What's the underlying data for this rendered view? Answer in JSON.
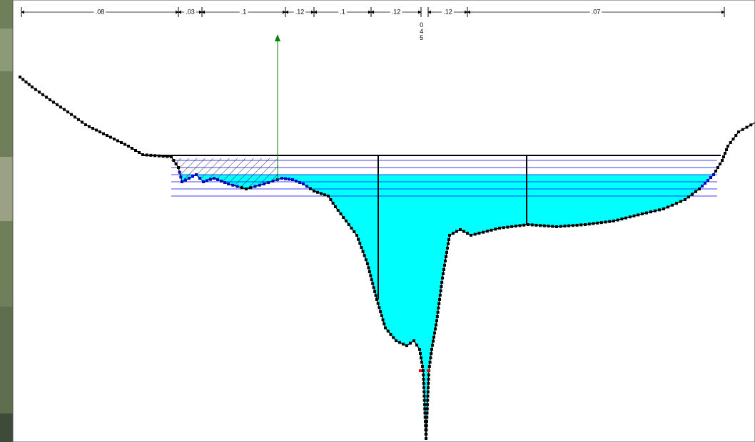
{
  "manning_n": [
    ".08",
    ".03",
    ".1",
    ".12",
    ".1",
    ".12",
    ".12",
    ".07"
  ],
  "station_label": "045"
}
